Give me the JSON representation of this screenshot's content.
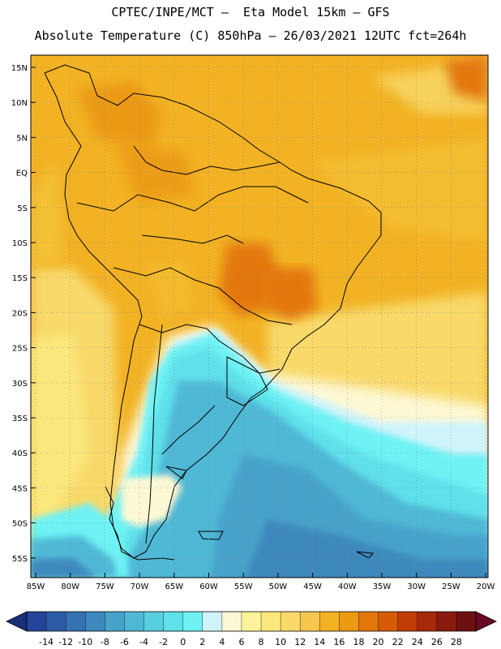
{
  "header": {
    "line1": "CPTEC/INPE/MCT –  Eta Model 15km – GFS",
    "line2": "Absolute Temperature (C) 850hPa – 26/03/2021 12UTC fct=264h"
  },
  "map": {
    "lat_labels": [
      "15N",
      "10N",
      "5N",
      "EQ",
      "5S",
      "10S",
      "15S",
      "20S",
      "25S",
      "30S",
      "35S",
      "40S",
      "45S",
      "50S",
      "55S"
    ],
    "lon_labels": [
      "85W",
      "80W",
      "75W",
      "70W",
      "65W",
      "60W",
      "55W",
      "50W",
      "45W",
      "40W",
      "35W",
      "30W",
      "25W",
      "20W"
    ]
  },
  "colorbar": {
    "labels": [
      "-14",
      "-12",
      "-10",
      "-8",
      "-6",
      "-4",
      "-2",
      "0",
      "2",
      "4",
      "6",
      "8",
      "10",
      "12",
      "14",
      "16",
      "18",
      "20",
      "22",
      "24",
      "26",
      "28"
    ],
    "colors": [
      "#24439a",
      "#2c5aa5",
      "#3572b1",
      "#3d88bd",
      "#47a2c9",
      "#4fb8d5",
      "#57cfe0",
      "#5fe0ea",
      "#6ef2f4",
      "#d0f4fb",
      "#fdf8d4",
      "#fcf39b",
      "#fbe87d",
      "#f8d96a",
      "#f6c64f",
      "#f2b224",
      "#eb9a12",
      "#e3770a",
      "#d75a06",
      "#c03d05",
      "#a8280b",
      "#8a1a0e",
      "#6e1012"
    ],
    "arrow_left": "#1a2f7a",
    "arrow_right": "#6a0a22"
  }
}
